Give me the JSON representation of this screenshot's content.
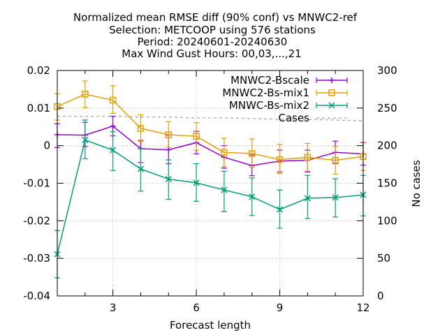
{
  "chart_data": {
    "type": "line",
    "title_lines": [
      "Normalized mean RMSE diff (90% conf) vs MNWC2-ref",
      "Selection: METCOOP using   576 stations",
      "Period: 20240601-20240630",
      "Max Wind Gust   Hours: 00,03,...,21"
    ],
    "xlabel": "Forecast length",
    "y2label": "No cases",
    "xlim": [
      1,
      12
    ],
    "ylim": [
      -0.04,
      0.02
    ],
    "y2lim": [
      0,
      300
    ],
    "x_ticks": [
      3,
      6,
      9,
      12
    ],
    "y_ticks": [
      -0.04,
      -0.03,
      -0.02,
      -0.01,
      0,
      0.01,
      0.02
    ],
    "y_tick_labels": [
      "-0.04",
      "-0.03",
      "-0.02",
      "-0.01",
      "0",
      "0.01",
      "0.02"
    ],
    "y2_ticks": [
      0,
      50,
      100,
      150,
      200,
      250,
      300
    ],
    "y2_tick_labels": [
      "0",
      "50",
      "100",
      "150",
      "200",
      "250",
      "300"
    ],
    "grid": true,
    "legend_position": "top-right",
    "series": [
      {
        "name": "MNWC2-Bscale",
        "color": "#9400d3",
        "marker": "plus",
        "x": [
          1,
          2,
          3,
          4,
          5,
          6,
          7,
          8,
          9,
          10,
          11,
          12
        ],
        "y": [
          0.0029,
          0.0028,
          0.0052,
          -0.0008,
          -0.0011,
          0.0008,
          -0.0031,
          -0.0053,
          -0.0041,
          -0.0039,
          -0.0018,
          -0.0022
        ],
        "err_low": [
          -0.0005,
          -0.0002,
          0.0026,
          -0.0045,
          -0.0048,
          -0.0022,
          -0.006,
          -0.008,
          -0.007,
          -0.007,
          -0.0048,
          -0.0052
        ],
        "err_high": [
          0.0058,
          0.0062,
          0.0078,
          0.0014,
          0.0028,
          0.0038,
          0.0,
          -0.0025,
          -0.0012,
          -0.0012,
          0.0012,
          0.0008
        ]
      },
      {
        "name": "MNWC2-Bs-mix1",
        "color": "#e69f00",
        "marker": "square",
        "x": [
          1,
          2,
          3,
          4,
          5,
          6,
          7,
          8,
          9,
          10,
          11,
          12
        ],
        "y": [
          0.0104,
          0.0137,
          0.0121,
          0.0046,
          0.0029,
          0.0025,
          -0.0018,
          -0.0021,
          -0.0037,
          -0.0031,
          -0.0039,
          -0.0029
        ],
        "err_low": [
          0.0068,
          0.0101,
          0.0086,
          0.0011,
          -0.0005,
          -0.0012,
          -0.0056,
          -0.0058,
          -0.0074,
          -0.0068,
          -0.0076,
          -0.0066
        ],
        "err_high": [
          0.0138,
          0.0172,
          0.0159,
          0.0082,
          0.0064,
          0.0061,
          0.002,
          0.0018,
          0.0003,
          0.0006,
          -0.0002,
          0.0009
        ]
      },
      {
        "name": "MNWC-Bs-mix2",
        "color": "#009e73",
        "marker": "cross",
        "x": [
          1,
          2,
          3,
          4,
          5,
          6,
          7,
          8,
          9,
          10,
          11,
          12
        ],
        "y": [
          -0.0289,
          0.0015,
          -0.0012,
          -0.0062,
          -0.0089,
          -0.0099,
          -0.0118,
          -0.0136,
          -0.017,
          -0.014,
          -0.0138,
          -0.0131
        ],
        "err_low": [
          -0.0352,
          -0.0035,
          -0.0066,
          -0.0121,
          -0.0143,
          -0.0148,
          -0.0176,
          -0.0186,
          -0.022,
          -0.0194,
          -0.019,
          -0.0187
        ],
        "err_high": [
          -0.0226,
          0.0068,
          0.0037,
          -0.0008,
          -0.0038,
          -0.0048,
          -0.0068,
          -0.0086,
          -0.0118,
          -0.0079,
          -0.0088,
          -0.0079
        ]
      }
    ],
    "cases": {
      "name": "Cases",
      "color": "#a0a0a0",
      "x": [
        1,
        2,
        3,
        4,
        5,
        6,
        7,
        8,
        9,
        10,
        11,
        12
      ],
      "y": [
        239,
        239,
        239,
        238,
        238,
        237,
        237,
        236,
        235,
        235,
        234,
        233
      ]
    }
  }
}
